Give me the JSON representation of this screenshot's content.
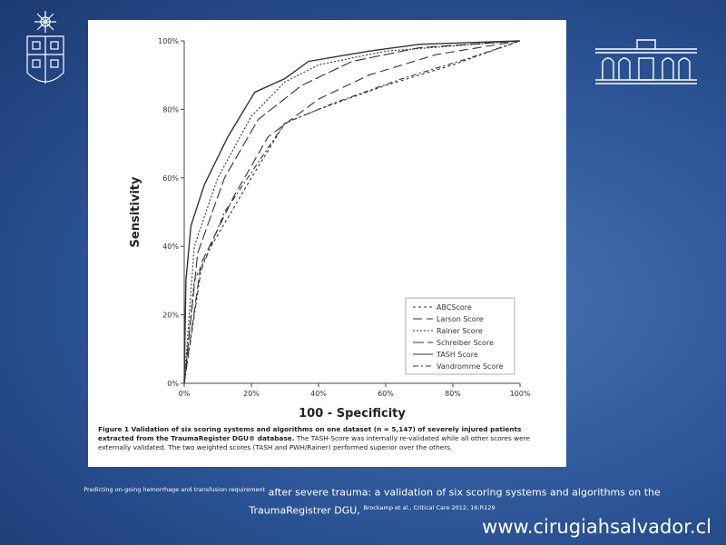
{
  "chart_data": {
    "type": "line",
    "xlabel": "100 - Specificity",
    "ylabel": "Sensitivity",
    "xlim": [
      0,
      100
    ],
    "ylim": [
      0,
      100
    ],
    "xticks": [
      {
        "value": 0,
        "label": "0%"
      },
      {
        "value": 20,
        "label": "20%"
      },
      {
        "value": 40,
        "label": "40%"
      },
      {
        "value": 60,
        "label": "60%"
      },
      {
        "value": 80,
        "label": "80%"
      },
      {
        "value": 100,
        "label": "100%"
      }
    ],
    "yticks": [
      {
        "value": 0,
        "label": "0%"
      },
      {
        "value": 20,
        "label": "20%"
      },
      {
        "value": 40,
        "label": "40%"
      },
      {
        "value": 60,
        "label": "60%"
      },
      {
        "value": 80,
        "label": "80%"
      },
      {
        "value": 100,
        "label": "100%"
      }
    ],
    "legend": "lower-right",
    "series": [
      {
        "name": "ABCScore",
        "color": "#333333",
        "dash": "3,3",
        "x": [
          0,
          3,
          8,
          20,
          30,
          40,
          60,
          80,
          100
        ],
        "values": [
          0,
          30,
          40,
          60,
          76,
          80,
          87,
          93,
          100
        ]
      },
      {
        "name": "Larson Score",
        "color": "#333333",
        "dash": "10,5",
        "x": [
          0,
          5,
          15,
          25,
          40,
          55,
          75,
          100
        ],
        "values": [
          0,
          35,
          55,
          72,
          83,
          90,
          96,
          100
        ]
      },
      {
        "name": "Rainer Score",
        "color": "#333333",
        "dash": "2,2",
        "x": [
          0,
          3,
          10,
          20,
          30,
          40,
          60,
          100
        ],
        "values": [
          0,
          40,
          60,
          78,
          88,
          93,
          97,
          100
        ]
      },
      {
        "name": "Schreiber Score",
        "color": "#333333",
        "dash": "12,4",
        "x": [
          0,
          4,
          12,
          22,
          35,
          50,
          70,
          100
        ],
        "values": [
          0,
          38,
          60,
          77,
          87,
          94,
          98,
          100
        ]
      },
      {
        "name": "TASH Score",
        "color": "#333333",
        "dash": "none",
        "x": [
          0,
          0.5,
          2,
          6,
          13,
          21,
          30,
          37,
          55,
          70,
          100
        ],
        "values": [
          0,
          30,
          46,
          58,
          72,
          85,
          89,
          94,
          97,
          99,
          100
        ]
      },
      {
        "name": "Vandromme Score",
        "color": "#333333",
        "dash": "6,3,2,3",
        "x": [
          0,
          5,
          12,
          30,
          45,
          65,
          85,
          100
        ],
        "values": [
          0,
          33,
          50,
          76,
          82,
          89,
          95,
          100
        ]
      }
    ]
  },
  "caption": {
    "bold": "Figure 1 Validation of six scoring systems and algorithms on one dataset (n = 5,147) of severely injured patients extracted from the TraumaRegister DGU® database.",
    "text": "The TASH-Score was internally re-validated while all other scores were externally validated. The two weighted scores (TASH and PWH/Rainer) performed superior over the others."
  },
  "citation": {
    "small_1": "Predicting on-going hemorrhage and transfusion requirement",
    "main": "after severe trauma: a validation of six scoring systems and algorithms on the TraumaRegistrer DGU,",
    "small_2": "Brockamp et al., Critical Care 2012, 16:R129"
  },
  "website": "www.cirugiahsalvador.cl"
}
